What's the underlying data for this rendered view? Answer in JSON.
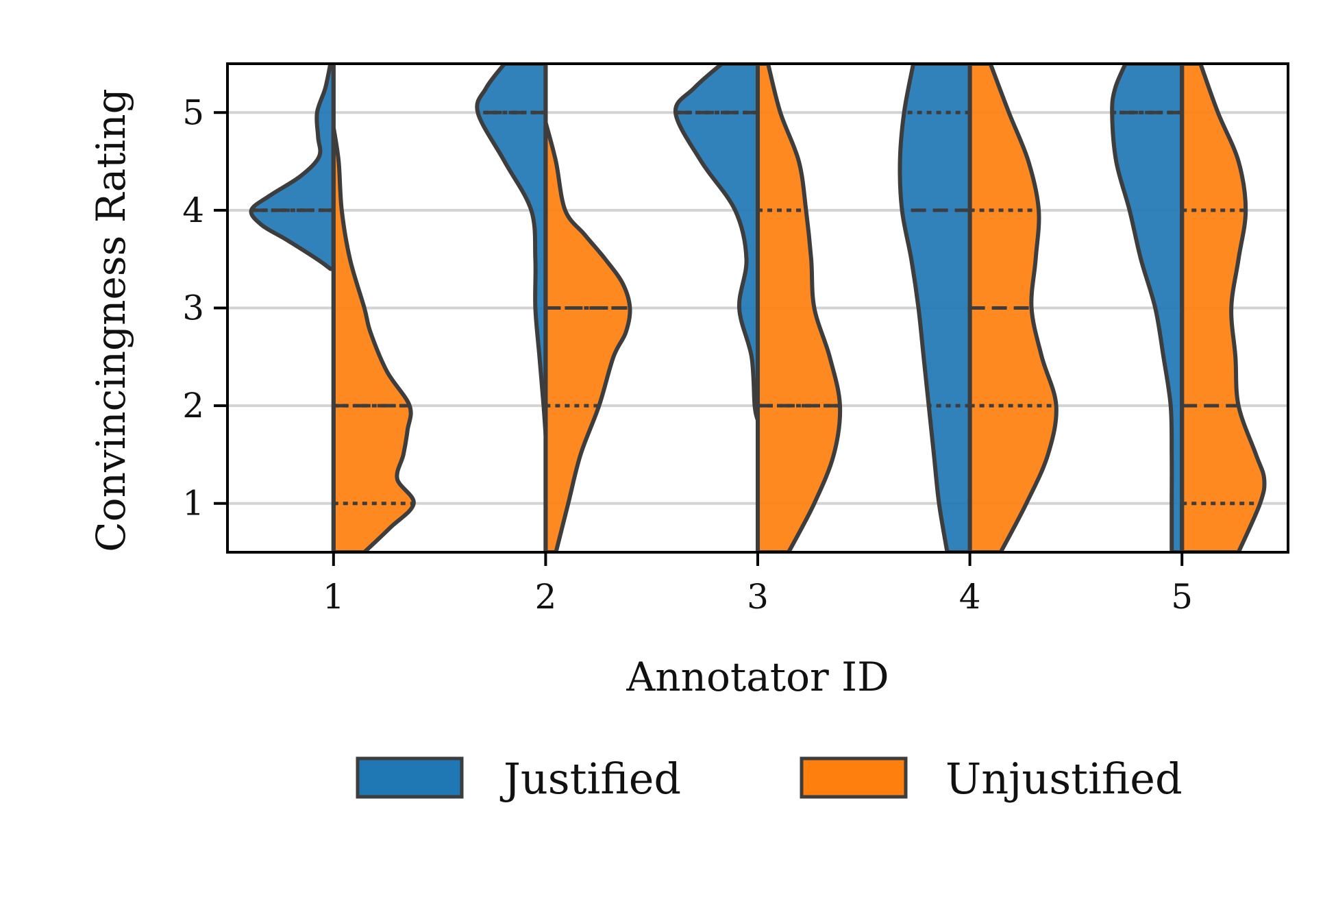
{
  "chart_data": {
    "type": "violin",
    "xlabel": "Annotator ID",
    "ylabel": "Convincingness Rating",
    "categories": [
      "1",
      "2",
      "3",
      "4",
      "5"
    ],
    "yticks": [
      1,
      2,
      3,
      4,
      5
    ],
    "ylim": [
      0.5,
      5.5
    ],
    "grid": "horizontal",
    "legend_placement": "bottom-center",
    "split": true,
    "series": [
      {
        "name": "Justified",
        "color": "#1f77b4",
        "side": "left",
        "violins": [
          {
            "category": "1",
            "range": [
              3.4,
              5.5
            ],
            "quartile_lines": [
              4,
              4,
              4
            ],
            "density": [
              [
                3.4,
                0.03
              ],
              [
                3.5,
                0.16
              ],
              [
                3.7,
                0.46
              ],
              [
                3.85,
                0.7
              ],
              [
                4.0,
                0.8
              ],
              [
                4.15,
                0.62
              ],
              [
                4.35,
                0.32
              ],
              [
                4.55,
                0.14
              ],
              [
                4.75,
                0.15
              ],
              [
                5.0,
                0.16
              ],
              [
                5.25,
                0.08
              ],
              [
                5.5,
                0.03
              ]
            ]
          },
          {
            "category": "2",
            "range": [
              1.7,
              5.5
            ],
            "quartile_lines": [
              5,
              5,
              5
            ],
            "density": [
              [
                1.7,
                0.0
              ],
              [
                2.0,
                0.02
              ],
              [
                2.5,
                0.06
              ],
              [
                3.0,
                0.1
              ],
              [
                3.5,
                0.1
              ],
              [
                4.0,
                0.14
              ],
              [
                4.5,
                0.4
              ],
              [
                5.0,
                0.66
              ],
              [
                5.25,
                0.58
              ],
              [
                5.5,
                0.4
              ]
            ]
          },
          {
            "category": "3",
            "range": [
              1.85,
              5.5
            ],
            "quartile_lines": [
              5,
              5,
              5
            ],
            "density": [
              [
                1.85,
                0.0
              ],
              [
                2.0,
                0.03
              ],
              [
                2.5,
                0.06
              ],
              [
                3.0,
                0.18
              ],
              [
                3.5,
                0.11
              ],
              [
                4.0,
                0.22
              ],
              [
                4.5,
                0.55
              ],
              [
                5.0,
                0.8
              ],
              [
                5.25,
                0.62
              ],
              [
                5.5,
                0.35
              ]
            ]
          },
          {
            "category": "4",
            "range": [
              0.5,
              5.5
            ],
            "quartile_lines": [
              2,
              4,
              5
            ],
            "density": [
              [
                0.5,
                0.22
              ],
              [
                1.0,
                0.3
              ],
              [
                1.5,
                0.35
              ],
              [
                2.0,
                0.4
              ],
              [
                2.5,
                0.45
              ],
              [
                3.0,
                0.5
              ],
              [
                3.5,
                0.57
              ],
              [
                4.0,
                0.66
              ],
              [
                4.5,
                0.68
              ],
              [
                5.0,
                0.64
              ],
              [
                5.5,
                0.55
              ]
            ]
          },
          {
            "category": "5",
            "range": [
              0.5,
              5.5
            ],
            "quartile_lines": [
              5,
              5,
              5
            ],
            "density": [
              [
                0.5,
                0.1
              ],
              [
                1.0,
                0.1
              ],
              [
                1.5,
                0.1
              ],
              [
                2.0,
                0.11
              ],
              [
                2.5,
                0.18
              ],
              [
                3.0,
                0.26
              ],
              [
                3.5,
                0.4
              ],
              [
                4.0,
                0.51
              ],
              [
                4.5,
                0.64
              ],
              [
                5.0,
                0.68
              ],
              [
                5.25,
                0.65
              ],
              [
                5.5,
                0.55
              ]
            ]
          }
        ]
      },
      {
        "name": "Unjustified",
        "color": "#ff7f0e",
        "side": "right",
        "violins": [
          {
            "category": "1",
            "range": [
              0.5,
              4.85
            ],
            "quartile_lines": [
              1,
              2,
              2
            ],
            "density": [
              [
                0.5,
                0.3
              ],
              [
                0.75,
                0.55
              ],
              [
                1.0,
                0.78
              ],
              [
                1.25,
                0.62
              ],
              [
                1.5,
                0.68
              ],
              [
                1.75,
                0.72
              ],
              [
                2.0,
                0.74
              ],
              [
                2.35,
                0.52
              ],
              [
                2.75,
                0.36
              ],
              [
                3.0,
                0.3
              ],
              [
                3.5,
                0.16
              ],
              [
                4.0,
                0.08
              ],
              [
                4.5,
                0.05
              ],
              [
                4.85,
                0.0
              ]
            ]
          },
          {
            "category": "2",
            "range": [
              0.5,
              4.9
            ],
            "quartile_lines": [
              2,
              3,
              3
            ],
            "density": [
              [
                0.5,
                0.1
              ],
              [
                1.0,
                0.22
              ],
              [
                1.5,
                0.34
              ],
              [
                2.0,
                0.52
              ],
              [
                2.5,
                0.66
              ],
              [
                2.75,
                0.78
              ],
              [
                3.0,
                0.82
              ],
              [
                3.25,
                0.75
              ],
              [
                3.5,
                0.58
              ],
              [
                3.75,
                0.38
              ],
              [
                4.0,
                0.19
              ],
              [
                4.5,
                0.1
              ],
              [
                4.9,
                0.0
              ]
            ]
          },
          {
            "category": "3",
            "range": [
              0.5,
              5.5
            ],
            "quartile_lines": [
              2,
              2,
              4
            ],
            "density": [
              [
                0.5,
                0.3
              ],
              [
                1.0,
                0.55
              ],
              [
                1.5,
                0.74
              ],
              [
                2.0,
                0.8
              ],
              [
                2.5,
                0.7
              ],
              [
                3.0,
                0.55
              ],
              [
                3.5,
                0.52
              ],
              [
                4.0,
                0.47
              ],
              [
                4.5,
                0.4
              ],
              [
                5.0,
                0.22
              ],
              [
                5.5,
                0.1
              ]
            ]
          },
          {
            "category": "4",
            "range": [
              0.5,
              5.5
            ],
            "quartile_lines": [
              2,
              3,
              4
            ],
            "density": [
              [
                0.5,
                0.3
              ],
              [
                1.0,
                0.55
              ],
              [
                1.5,
                0.76
              ],
              [
                2.0,
                0.84
              ],
              [
                2.5,
                0.7
              ],
              [
                3.0,
                0.6
              ],
              [
                3.5,
                0.64
              ],
              [
                4.0,
                0.67
              ],
              [
                4.5,
                0.57
              ],
              [
                5.0,
                0.38
              ],
              [
                5.5,
                0.2
              ]
            ]
          },
          {
            "category": "5",
            "range": [
              0.5,
              5.5
            ],
            "quartile_lines": [
              1,
              2,
              4
            ],
            "density": [
              [
                0.5,
                0.55
              ],
              [
                1.0,
                0.76
              ],
              [
                1.25,
                0.8
              ],
              [
                1.5,
                0.72
              ],
              [
                2.0,
                0.55
              ],
              [
                2.5,
                0.52
              ],
              [
                3.0,
                0.48
              ],
              [
                3.5,
                0.55
              ],
              [
                4.0,
                0.62
              ],
              [
                4.5,
                0.55
              ],
              [
                5.0,
                0.35
              ],
              [
                5.5,
                0.18
              ]
            ]
          }
        ]
      }
    ]
  }
}
